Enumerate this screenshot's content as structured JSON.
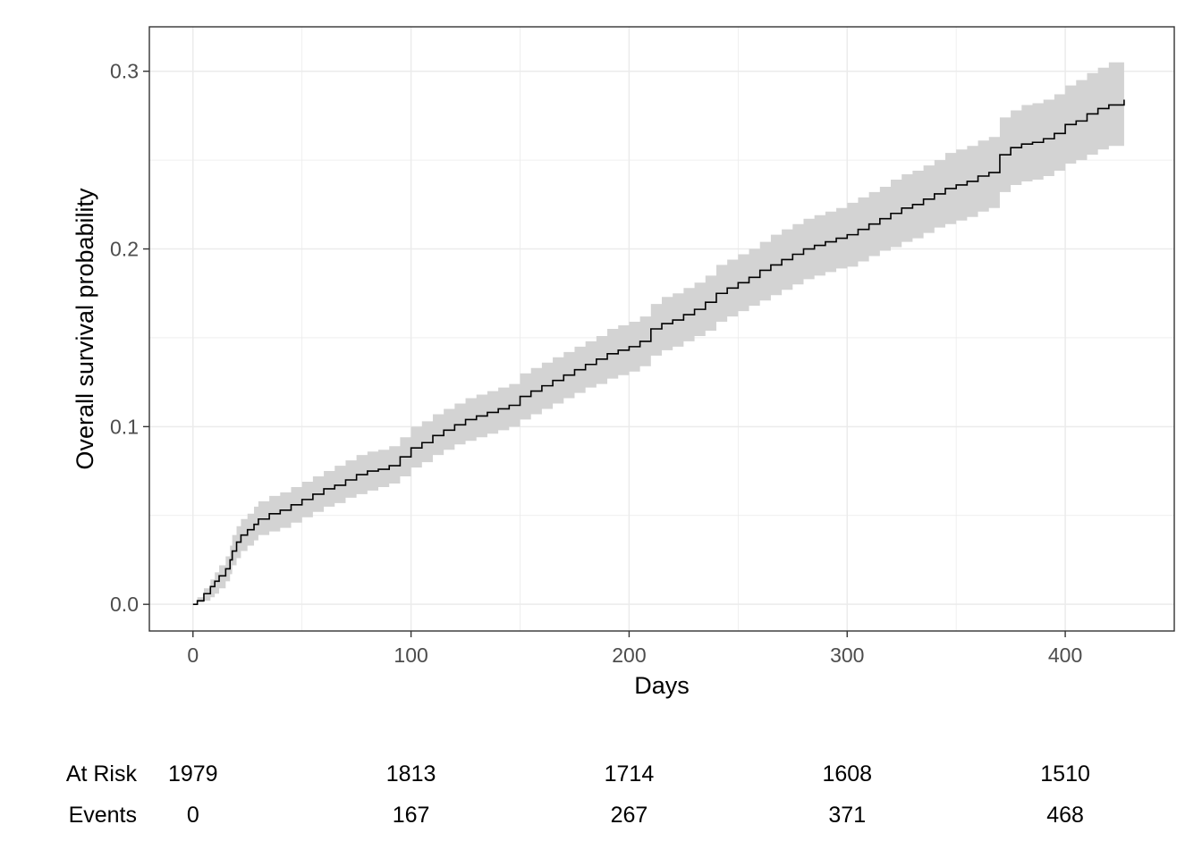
{
  "chart_data": {
    "type": "line",
    "title": "",
    "xlabel": "Days",
    "ylabel": "Overall survival probability",
    "xlim": [
      -20,
      450
    ],
    "ylim": [
      -0.015,
      0.325
    ],
    "x_ticks": [
      0,
      100,
      200,
      300,
      400
    ],
    "x_tick_labels": [
      "0",
      "100",
      "200",
      "300",
      "400"
    ],
    "y_ticks": [
      0.0,
      0.1,
      0.2,
      0.3
    ],
    "y_tick_labels": [
      "0.0",
      "0.1",
      "0.2",
      "0.3"
    ],
    "grid": true,
    "colors": {
      "line": "#000000",
      "band": "#d3d3d3",
      "grid": "#ebebeb",
      "panel_border": "#333333"
    },
    "series": [
      {
        "step": true,
        "x": [
          0,
          2,
          5,
          8,
          10,
          12,
          15,
          17,
          18,
          20,
          22,
          25,
          28,
          30,
          35,
          40,
          45,
          50,
          55,
          60,
          65,
          70,
          75,
          80,
          85,
          90,
          95,
          100,
          105,
          110,
          115,
          120,
          125,
          130,
          135,
          140,
          145,
          150,
          155,
          160,
          165,
          170,
          175,
          180,
          185,
          190,
          195,
          200,
          205,
          210,
          215,
          220,
          225,
          230,
          235,
          240,
          245,
          250,
          255,
          260,
          265,
          270,
          275,
          280,
          285,
          290,
          295,
          300,
          305,
          310,
          315,
          320,
          325,
          330,
          335,
          340,
          345,
          350,
          355,
          360,
          365,
          370,
          375,
          380,
          385,
          390,
          395,
          400,
          405,
          410,
          415,
          420,
          427
        ],
        "y": [
          0.0,
          0.002,
          0.006,
          0.01,
          0.013,
          0.016,
          0.02,
          0.025,
          0.03,
          0.035,
          0.039,
          0.042,
          0.045,
          0.048,
          0.051,
          0.053,
          0.056,
          0.059,
          0.062,
          0.065,
          0.067,
          0.07,
          0.073,
          0.075,
          0.076,
          0.078,
          0.083,
          0.088,
          0.091,
          0.095,
          0.098,
          0.101,
          0.104,
          0.106,
          0.108,
          0.11,
          0.112,
          0.117,
          0.12,
          0.123,
          0.126,
          0.129,
          0.132,
          0.135,
          0.138,
          0.141,
          0.143,
          0.145,
          0.148,
          0.155,
          0.158,
          0.16,
          0.163,
          0.166,
          0.17,
          0.175,
          0.178,
          0.181,
          0.184,
          0.188,
          0.191,
          0.194,
          0.197,
          0.2,
          0.202,
          0.204,
          0.206,
          0.208,
          0.211,
          0.214,
          0.217,
          0.22,
          0.223,
          0.225,
          0.228,
          0.231,
          0.234,
          0.236,
          0.238,
          0.241,
          0.243,
          0.253,
          0.257,
          0.259,
          0.26,
          0.262,
          0.265,
          0.27,
          0.272,
          0.276,
          0.279,
          0.281,
          0.284
        ],
        "lower": [
          0.0,
          0.001,
          0.002,
          0.004,
          0.006,
          0.009,
          0.013,
          0.017,
          0.022,
          0.026,
          0.03,
          0.033,
          0.036,
          0.039,
          0.041,
          0.043,
          0.046,
          0.049,
          0.052,
          0.055,
          0.057,
          0.06,
          0.062,
          0.064,
          0.066,
          0.068,
          0.072,
          0.077,
          0.08,
          0.084,
          0.087,
          0.09,
          0.092,
          0.094,
          0.096,
          0.098,
          0.1,
          0.104,
          0.107,
          0.11,
          0.113,
          0.116,
          0.119,
          0.122,
          0.124,
          0.127,
          0.129,
          0.131,
          0.134,
          0.14,
          0.143,
          0.145,
          0.148,
          0.151,
          0.154,
          0.159,
          0.162,
          0.165,
          0.168,
          0.171,
          0.174,
          0.177,
          0.18,
          0.183,
          0.185,
          0.187,
          0.189,
          0.19,
          0.193,
          0.196,
          0.199,
          0.201,
          0.204,
          0.206,
          0.209,
          0.212,
          0.214,
          0.216,
          0.218,
          0.221,
          0.223,
          0.232,
          0.236,
          0.238,
          0.239,
          0.241,
          0.244,
          0.248,
          0.25,
          0.253,
          0.256,
          0.258,
          0.26
        ],
        "upper": [
          0.0,
          0.004,
          0.009,
          0.014,
          0.018,
          0.022,
          0.027,
          0.033,
          0.039,
          0.044,
          0.048,
          0.051,
          0.055,
          0.058,
          0.061,
          0.063,
          0.066,
          0.069,
          0.072,
          0.075,
          0.078,
          0.081,
          0.084,
          0.086,
          0.087,
          0.089,
          0.094,
          0.1,
          0.103,
          0.107,
          0.11,
          0.113,
          0.116,
          0.118,
          0.12,
          0.122,
          0.124,
          0.13,
          0.133,
          0.136,
          0.139,
          0.142,
          0.145,
          0.148,
          0.151,
          0.155,
          0.157,
          0.159,
          0.162,
          0.169,
          0.173,
          0.175,
          0.178,
          0.181,
          0.185,
          0.191,
          0.194,
          0.197,
          0.2,
          0.204,
          0.208,
          0.211,
          0.214,
          0.217,
          0.219,
          0.221,
          0.223,
          0.226,
          0.229,
          0.232,
          0.235,
          0.239,
          0.242,
          0.244,
          0.247,
          0.25,
          0.254,
          0.256,
          0.258,
          0.261,
          0.263,
          0.274,
          0.278,
          0.281,
          0.282,
          0.284,
          0.287,
          0.292,
          0.295,
          0.299,
          0.302,
          0.305,
          0.309
        ]
      }
    ]
  },
  "risk_table": {
    "x": [
      0,
      100,
      200,
      300,
      400
    ],
    "rows": [
      {
        "label": "At Risk",
        "values": [
          "1979",
          "1813",
          "1714",
          "1608",
          "1510"
        ]
      },
      {
        "label": "Events",
        "values": [
          "0",
          "167",
          "267",
          "371",
          "468"
        ]
      }
    ]
  }
}
